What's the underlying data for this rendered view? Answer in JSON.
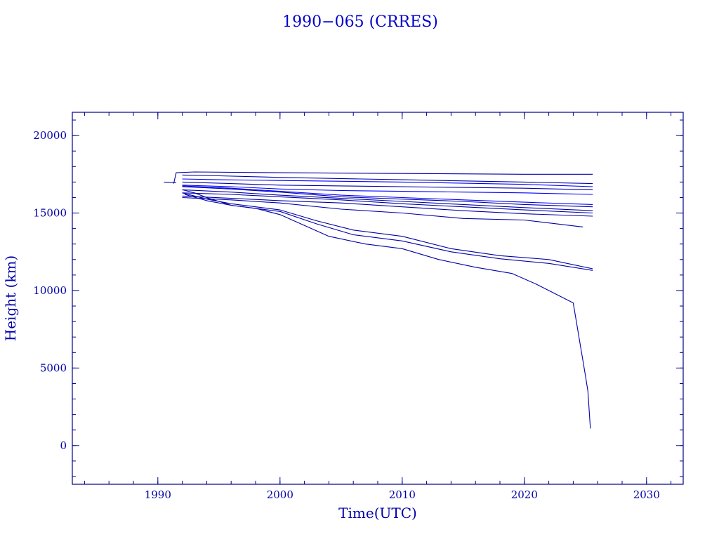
{
  "chart_data": {
    "type": "line",
    "title": "1990−065 (CRRES)",
    "xlabel": "Time(UTC)",
    "ylabel": "Height (km)",
    "xlim": [
      1983,
      2033
    ],
    "ylim": [
      -2500,
      21500
    ],
    "xticks": [
      1990,
      2000,
      2010,
      2020,
      2030
    ],
    "xtick_labels": [
      "1990",
      "2000",
      "2010",
      "2020",
      "2030"
    ],
    "xminor_step": 2,
    "yticks": [
      0,
      5000,
      10000,
      15000,
      20000
    ],
    "ytick_labels": [
      "0",
      "5000",
      "10000",
      "15000",
      "20000"
    ],
    "yminor_step": 1000,
    "grid": false,
    "colors": {
      "series": "#0000aa",
      "highlight": "#0000ff",
      "axis": "#000088"
    },
    "series": [
      {
        "color": "#0000aa",
        "x": [
          1990.5,
          1991.5
        ],
        "y": [
          17000,
          16950
        ]
      },
      {
        "color": "#0000aa",
        "x": [
          1991.3,
          1991.5,
          1993,
          2000,
          2010,
          2020,
          2025.6
        ],
        "y": [
          16900,
          17600,
          17650,
          17600,
          17550,
          17500,
          17500
        ]
      },
      {
        "color": "#0000aa",
        "x": [
          1992,
          1995,
          2000,
          2010,
          2020,
          2025.6
        ],
        "y": [
          17450,
          17400,
          17300,
          17150,
          17000,
          16900
        ]
      },
      {
        "color": "#0000ff",
        "x": [
          1992,
          1995,
          2000,
          2010,
          2020,
          2025.6
        ],
        "y": [
          17200,
          17150,
          17100,
          17000,
          16850,
          16700
        ]
      },
      {
        "color": "#0000aa",
        "x": [
          1992,
          1996,
          2000,
          2005,
          2010,
          2015,
          2020,
          2025.6
        ],
        "y": [
          17000,
          16900,
          16800,
          16750,
          16700,
          16650,
          16600,
          16500
        ]
      },
      {
        "color": "#0000ff",
        "x": [
          1992,
          1996,
          2000,
          2005,
          2010,
          2015,
          2020,
          2025.6
        ],
        "y": [
          16800,
          16700,
          16550,
          16450,
          16400,
          16350,
          16300,
          16200
        ]
      },
      {
        "color": "#0000ff",
        "x": [
          1992,
          1996,
          2000,
          2005,
          2010,
          2015,
          2020,
          2025.6
        ],
        "y": [
          16750,
          16600,
          16400,
          16150,
          16000,
          15850,
          15700,
          15550
        ]
      },
      {
        "color": "#0000aa",
        "x": [
          1992,
          1996,
          2000,
          2005,
          2010,
          2015,
          2020,
          2025.6
        ],
        "y": [
          16700,
          16550,
          16350,
          16050,
          15900,
          15750,
          15550,
          15400
        ]
      },
      {
        "color": "#0000aa",
        "x": [
          1992,
          1996,
          2000,
          2005,
          2010,
          2015,
          2020,
          2025.6
        ],
        "y": [
          16500,
          16350,
          16150,
          15950,
          15750,
          15550,
          15350,
          15150
        ]
      },
      {
        "color": "#0000aa",
        "x": [
          1992,
          1996,
          2000,
          2005,
          2010,
          2015,
          2020,
          2025.6
        ],
        "y": [
          16300,
          16200,
          16050,
          15850,
          15600,
          15400,
          15200,
          15000
        ]
      },
      {
        "color": "#0000aa",
        "x": [
          1992,
          1996,
          2000,
          2005,
          2010,
          2015,
          2020,
          2025.6
        ],
        "y": [
          16100,
          15950,
          15800,
          15650,
          15400,
          15150,
          14950,
          14800
        ]
      },
      {
        "color": "#0000aa",
        "x": [
          1992,
          1996,
          2000,
          2005,
          2010,
          2015,
          2020,
          2024.8
        ],
        "y": [
          16000,
          15850,
          15650,
          15250,
          15000,
          14650,
          14550,
          14100
        ]
      },
      {
        "color": "#0000aa",
        "x": [
          1992,
          1994,
          1996,
          2000,
          2003,
          2006,
          2010,
          2014,
          2018,
          2022,
          2025.6
        ],
        "y": [
          16300,
          15900,
          15600,
          15200,
          14500,
          13900,
          13500,
          12700,
          12250,
          12000,
          11400
        ]
      },
      {
        "color": "#0000aa",
        "x": [
          1992.2,
          1994,
          1996,
          2000,
          2003,
          2006,
          2010,
          2014,
          2018,
          2022,
          2025.6
        ],
        "y": [
          16200,
          15800,
          15500,
          15100,
          14300,
          13600,
          13200,
          12500,
          12050,
          11750,
          11300
        ]
      },
      {
        "color": "#0000aa",
        "x": [
          1992,
          1993,
          1994,
          1996,
          1998,
          2000,
          2002,
          2004,
          2007,
          2010,
          2013,
          2016,
          2019,
          2021,
          2023,
          2024,
          2025,
          2025.2,
          2025.4
        ],
        "y": [
          16500,
          16300,
          16000,
          15500,
          15300,
          14900,
          14200,
          13500,
          13000,
          12700,
          12000,
          11500,
          11100,
          10400,
          9600,
          9200,
          4500,
          3500,
          1100
        ]
      }
    ]
  }
}
